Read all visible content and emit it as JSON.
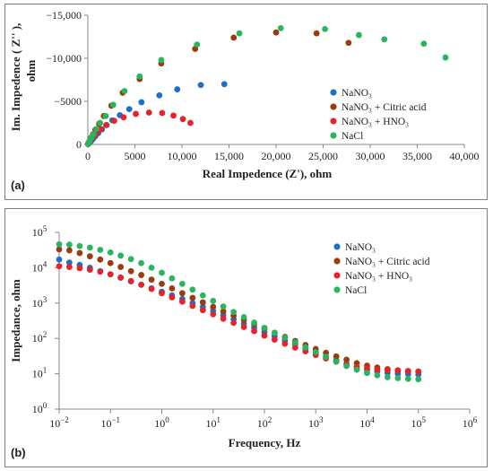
{
  "colors": {
    "NaNO3": "#1f6fc5",
    "NaNO3_citric": "#9c3b0e",
    "NaNO3_HNO3": "#e8222a",
    "NaCl": "#27b65e"
  },
  "chart_data": [
    {
      "type": "scatter",
      "panel_label": "(a)",
      "xlabel": "Real Impedence (Z'),  ohm",
      "ylabel": "Im. Impedence ( Z'' ),\nohm",
      "xlim": [
        0,
        40000
      ],
      "ylim": [
        0,
        -15000
      ],
      "x_ticks": [
        0,
        5000,
        10000,
        15000,
        20000,
        25000,
        30000,
        35000,
        40000
      ],
      "x_tick_labels": [
        "0",
        "5000",
        "10,000",
        "15,000",
        "20,000",
        "25,000",
        "30,000",
        "35,000",
        "40,000"
      ],
      "y_ticks": [
        0,
        -5000,
        -10000,
        -15000
      ],
      "y_tick_labels": [
        "0",
        "−5000",
        "−10,000",
        "−15,000"
      ],
      "legend_position": "center-right",
      "series": [
        {
          "name": "NaNO₃",
          "color_key": "NaNO3",
          "points": [
            [
              30,
              -40
            ],
            [
              80,
              -100
            ],
            [
              150,
              -180
            ],
            [
              250,
              -300
            ],
            [
              380,
              -450
            ],
            [
              550,
              -650
            ],
            [
              800,
              -950
            ],
            [
              1100,
              -1300
            ],
            [
              1500,
              -1750
            ],
            [
              2000,
              -2250
            ],
            [
              2600,
              -2800
            ],
            [
              3400,
              -3400
            ],
            [
              4400,
              -4100
            ],
            [
              5700,
              -4900
            ],
            [
              7600,
              -5700
            ],
            [
              9500,
              -6400
            ],
            [
              12000,
              -6900
            ],
            [
              14500,
              -7000
            ]
          ]
        },
        {
          "name": "NaNO₃ + Citric acid",
          "color_key": "NaNO3_citric",
          "points": [
            [
              20,
              -50
            ],
            [
              60,
              -150
            ],
            [
              130,
              -300
            ],
            [
              220,
              -500
            ],
            [
              350,
              -800
            ],
            [
              550,
              -1200
            ],
            [
              800,
              -1700
            ],
            [
              1200,
              -2400
            ],
            [
              1700,
              -3300
            ],
            [
              2500,
              -4500
            ],
            [
              3700,
              -6000
            ],
            [
              5500,
              -7600
            ],
            [
              7800,
              -9400
            ],
            [
              11400,
              -11100
            ],
            [
              15500,
              -12400
            ],
            [
              20000,
              -13000
            ],
            [
              24300,
              -12900
            ],
            [
              27700,
              -11800
            ]
          ]
        },
        {
          "name": "NaNO₃ + HNO₃",
          "color_key": "NaNO3_HNO3",
          "points": [
            [
              20,
              -40
            ],
            [
              60,
              -120
            ],
            [
              130,
              -250
            ],
            [
              230,
              -420
            ],
            [
              380,
              -650
            ],
            [
              600,
              -950
            ],
            [
              900,
              -1300
            ],
            [
              1350,
              -1750
            ],
            [
              1950,
              -2250
            ],
            [
              2800,
              -2750
            ],
            [
              3800,
              -3150
            ],
            [
              5100,
              -3550
            ],
            [
              6500,
              -3700
            ],
            [
              7900,
              -3650
            ],
            [
              9100,
              -3350
            ],
            [
              10100,
              -2950
            ],
            [
              10900,
              -2500
            ]
          ]
        },
        {
          "name": "NaCl",
          "color_key": "NaCl",
          "points": [
            [
              20,
              -50
            ],
            [
              60,
              -150
            ],
            [
              130,
              -300
            ],
            [
              230,
              -520
            ],
            [
              380,
              -800
            ],
            [
              600,
              -1200
            ],
            [
              900,
              -1800
            ],
            [
              1300,
              -2500
            ],
            [
              1900,
              -3300
            ],
            [
              2700,
              -4600
            ],
            [
              3900,
              -6200
            ],
            [
              5500,
              -7900
            ],
            [
              7800,
              -9800
            ],
            [
              11600,
              -11600
            ],
            [
              16100,
              -12900
            ],
            [
              20500,
              -13500
            ],
            [
              25200,
              -13400
            ],
            [
              28800,
              -12700
            ],
            [
              31500,
              -12200
            ],
            [
              35700,
              -11700
            ],
            [
              38000,
              -10100
            ]
          ]
        }
      ]
    },
    {
      "type": "scatter",
      "panel_label": "(b)",
      "xlabel": "Frequency, Hz",
      "ylabel": "Impedance, ohm",
      "x_scale": "log",
      "y_scale": "log",
      "xlim": [
        0.01,
        1000000
      ],
      "ylim": [
        1,
        100000
      ],
      "x_ticks": [
        0.01,
        0.1,
        1,
        10,
        100,
        1000,
        10000,
        100000,
        1000000
      ],
      "x_tick_labels": [
        [
          "10",
          "−2"
        ],
        [
          "10",
          "−1"
        ],
        [
          "10",
          "0"
        ],
        [
          "10",
          "1"
        ],
        [
          "10",
          "2"
        ],
        [
          "10",
          "3"
        ],
        [
          "10",
          "4"
        ],
        [
          "10",
          "5"
        ],
        [
          "10",
          "6"
        ]
      ],
      "y_ticks": [
        1,
        10,
        100,
        1000,
        10000,
        100000
      ],
      "y_tick_labels": [
        [
          "10",
          "0"
        ],
        [
          "10",
          "1"
        ],
        [
          "10",
          "2"
        ],
        [
          "10",
          "3"
        ],
        [
          "10",
          "4"
        ],
        [
          "10",
          "5"
        ]
      ],
      "legend_position": "top-right",
      "series": [
        {
          "name": "NaNO₃",
          "color_key": "NaNO3",
          "points": [
            [
              0.01,
              17000
            ],
            [
              0.0158,
              14000
            ],
            [
              0.0251,
              12000
            ],
            [
              0.0398,
              10000
            ],
            [
              0.0631,
              8000
            ],
            [
              0.1,
              6500
            ],
            [
              0.158,
              5200
            ],
            [
              0.251,
              4100
            ],
            [
              0.398,
              3300
            ],
            [
              0.631,
              2600
            ],
            [
              1,
              2100
            ],
            [
              1.58,
              1650
            ],
            [
              2.51,
              1300
            ],
            [
              3.98,
              1000
            ],
            [
              6.31,
              780
            ],
            [
              10,
              600
            ],
            [
              15.8,
              460
            ],
            [
              25.1,
              350
            ],
            [
              39.8,
              260
            ],
            [
              63.1,
              200
            ],
            [
              100,
              150
            ],
            [
              158,
              115
            ],
            [
              251,
              88
            ],
            [
              398,
              68
            ],
            [
              631,
              52
            ],
            [
              1000,
              40
            ],
            [
              1580,
              31
            ],
            [
              2510,
              24
            ],
            [
              3980,
              19
            ],
            [
              6310,
              15.5
            ],
            [
              10000,
              13
            ],
            [
              15800,
              11.5
            ],
            [
              25100,
              10.5
            ],
            [
              39800,
              10
            ],
            [
              63100,
              9.8
            ],
            [
              100000,
              9.5
            ]
          ]
        },
        {
          "name": "NaNO₃ + Citric acid",
          "color_key": "NaNO3_citric",
          "points": [
            [
              0.01,
              33000
            ],
            [
              0.0158,
              31000
            ],
            [
              0.0251,
              26000
            ],
            [
              0.0398,
              21000
            ],
            [
              0.0631,
              17000
            ],
            [
              0.1,
              13500
            ],
            [
              0.158,
              10500
            ],
            [
              0.251,
              8000
            ],
            [
              0.398,
              6200
            ],
            [
              0.631,
              4600
            ],
            [
              1,
              3500
            ],
            [
              1.58,
              2600
            ],
            [
              2.51,
              1900
            ],
            [
              3.98,
              1400
            ],
            [
              6.31,
              1050
            ],
            [
              10,
              780
            ],
            [
              15.8,
              580
            ],
            [
              25.1,
              440
            ],
            [
              39.8,
              330
            ],
            [
              63.1,
              250
            ],
            [
              100,
              190
            ],
            [
              158,
              145
            ],
            [
              251,
              110
            ],
            [
              398,
              85
            ],
            [
              631,
              65
            ],
            [
              1000,
              50
            ],
            [
              1580,
              39
            ],
            [
              2510,
              31
            ],
            [
              3980,
              25
            ],
            [
              6310,
              20
            ],
            [
              10000,
              17
            ],
            [
              15800,
              15
            ],
            [
              25100,
              13.5
            ],
            [
              39800,
              12.5
            ],
            [
              63100,
              12
            ],
            [
              100000,
              11.5
            ]
          ]
        },
        {
          "name": "NaNO₃ + HNO₃",
          "color_key": "NaNO3_HNO3",
          "points": [
            [
              0.01,
              11000
            ],
            [
              0.0158,
              10500
            ],
            [
              0.0251,
              9700
            ],
            [
              0.0398,
              8800
            ],
            [
              0.0631,
              7700
            ],
            [
              0.1,
              6500
            ],
            [
              0.158,
              5300
            ],
            [
              0.251,
              4200
            ],
            [
              0.398,
              3300
            ],
            [
              0.631,
              2500
            ],
            [
              1,
              1900
            ],
            [
              1.58,
              1450
            ],
            [
              2.51,
              1100
            ],
            [
              3.98,
              830
            ],
            [
              6.31,
              630
            ],
            [
              10,
              480
            ],
            [
              15.8,
              360
            ],
            [
              25.1,
              275
            ],
            [
              39.8,
              210
            ],
            [
              63.1,
              160
            ],
            [
              100,
              120
            ],
            [
              158,
              92
            ],
            [
              251,
              71
            ],
            [
              398,
              55
            ],
            [
              631,
              43
            ],
            [
              1000,
              34
            ],
            [
              1580,
              27
            ],
            [
              2510,
              22
            ],
            [
              3980,
              18
            ],
            [
              6310,
              15.5
            ],
            [
              10000,
              14
            ],
            [
              15800,
              13
            ],
            [
              25100,
              12.5
            ],
            [
              39800,
              12
            ],
            [
              63100,
              11.8
            ],
            [
              100000,
              11.5
            ]
          ]
        },
        {
          "name": "NaCl",
          "color_key": "NaCl",
          "points": [
            [
              0.01,
              46000
            ],
            [
              0.0158,
              45000
            ],
            [
              0.0251,
              41000
            ],
            [
              0.0398,
              37000
            ],
            [
              0.0631,
              32000
            ],
            [
              0.1,
              27000
            ],
            [
              0.158,
              22000
            ],
            [
              0.251,
              17500
            ],
            [
              0.398,
              13500
            ],
            [
              0.631,
              10000
            ],
            [
              1,
              7200
            ],
            [
              1.58,
              5000
            ],
            [
              2.51,
              3500
            ],
            [
              3.98,
              2400
            ],
            [
              6.31,
              1650
            ],
            [
              10,
              1150
            ],
            [
              15.8,
              800
            ],
            [
              25.1,
              560
            ],
            [
              39.8,
              400
            ],
            [
              63.1,
              280
            ],
            [
              100,
              200
            ],
            [
              158,
              145
            ],
            [
              251,
              105
            ],
            [
              398,
              77
            ],
            [
              631,
              56
            ],
            [
              1000,
              41
            ],
            [
              1580,
              30
            ],
            [
              2510,
              22
            ],
            [
              3980,
              16.5
            ],
            [
              6310,
              13
            ],
            [
              10000,
              10.5
            ],
            [
              15800,
              9
            ],
            [
              25100,
              8
            ],
            [
              39800,
              7.5
            ],
            [
              63100,
              7.2
            ],
            [
              100000,
              7
            ]
          ]
        }
      ]
    }
  ]
}
